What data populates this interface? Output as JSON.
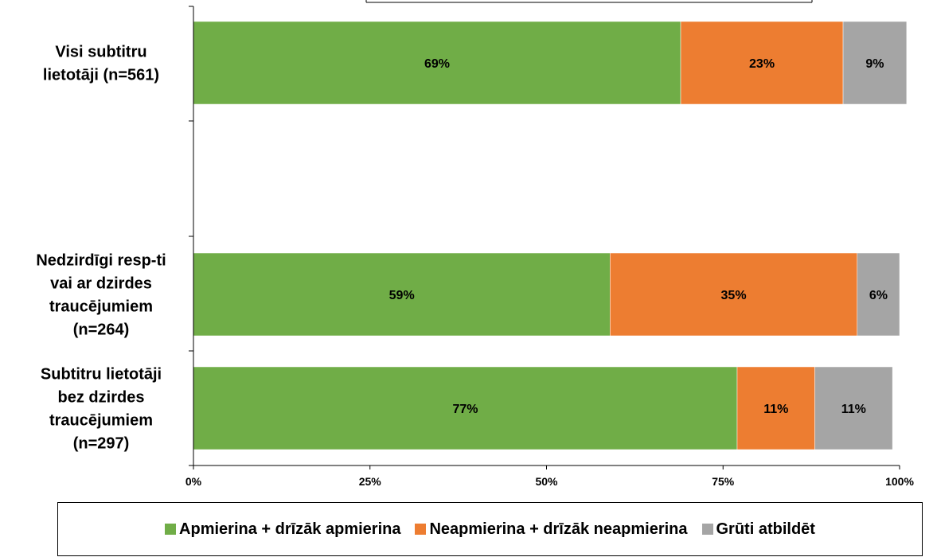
{
  "chart_data": {
    "type": "bar",
    "orientation": "horizontal",
    "stacked": true,
    "categories": [
      [
        "Visi subtitru",
        "lietotāji (n=561)"
      ],
      [
        "Nedzirdīgi resp-ti",
        "vai ar dzirdes",
        "traucējumiem",
        "(n=264)"
      ],
      [
        "Subtitru lietotāji",
        "bez dzirdes",
        "traucējumiem",
        "(n=297)"
      ]
    ],
    "series": [
      {
        "name": "Apmierina + drīzāk apmierina",
        "color": "#70ad47",
        "values": [
          69,
          59,
          77
        ],
        "labels": [
          "69%",
          "59%",
          "77%"
        ]
      },
      {
        "name": "Neapmierina + drīzāk neapmierina",
        "color": "#ed7d31",
        "values": [
          23,
          35,
          11
        ],
        "labels": [
          "23%",
          "35%",
          "11%"
        ]
      },
      {
        "name": "Grūti atbildēt",
        "color": "#a5a5a5",
        "values": [
          9,
          6,
          11
        ],
        "labels": [
          "9%",
          "6%",
          "11%"
        ]
      }
    ],
    "xlim": [
      0,
      100
    ],
    "xticks": [
      "0%",
      "25%",
      "50%",
      "75%",
      "100%"
    ],
    "grid": false,
    "legend_position": "bottom"
  }
}
